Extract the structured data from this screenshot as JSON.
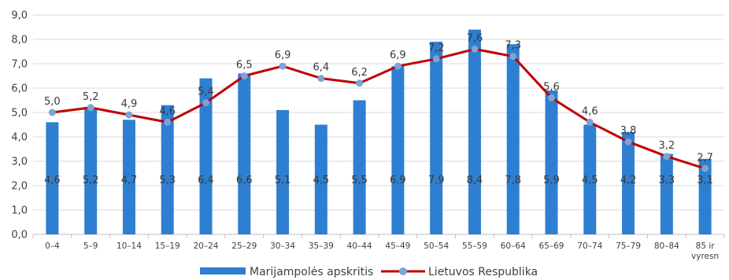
{
  "chart_data": {
    "type": "bar",
    "categories": [
      "0–4",
      "5–9",
      "10–14",
      "15–19",
      "20–24",
      "25–29",
      "30–34",
      "35–39",
      "40–44",
      "45–49",
      "50–54",
      "55–59",
      "60–64",
      "65–69",
      "70–74",
      "75–79",
      "80–84",
      "85 ir vyresn"
    ],
    "category_lines": [
      [
        "0–4"
      ],
      [
        "5–9"
      ],
      [
        "10–14"
      ],
      [
        "15–19"
      ],
      [
        "20–24"
      ],
      [
        "25–29"
      ],
      [
        "30–34"
      ],
      [
        "35–39"
      ],
      [
        "40–44"
      ],
      [
        "45–49"
      ],
      [
        "50–54"
      ],
      [
        "55–59"
      ],
      [
        "60–64"
      ],
      [
        "65–69"
      ],
      [
        "70–74"
      ],
      [
        "75–79"
      ],
      [
        "80–84"
      ],
      [
        "85 ir",
        "vyresn"
      ]
    ],
    "series": [
      {
        "name": "Marijampolės apskritis",
        "type": "bar",
        "color": "#2e7fd1",
        "values": [
          4.6,
          5.2,
          4.7,
          5.3,
          6.4,
          6.6,
          5.1,
          4.5,
          5.5,
          6.9,
          7.9,
          8.4,
          7.8,
          5.9,
          4.5,
          4.2,
          3.3,
          3.1
        ],
        "labels": [
          "4,6",
          "5,2",
          "4,7",
          "5,3",
          "6,4",
          "6,6",
          "5,1",
          "4,5",
          "5,5",
          "6,9",
          "7,9",
          "8,4",
          "7,8",
          "5,9",
          "4,5",
          "4,2",
          "3,3",
          "3,1"
        ]
      },
      {
        "name": "Lietuvos Respublika",
        "type": "line",
        "color": "#c00000",
        "marker_color": "#7aa5d6",
        "values": [
          5.0,
          5.2,
          4.9,
          4.6,
          5.4,
          6.5,
          6.9,
          6.4,
          6.2,
          6.9,
          7.2,
          7.6,
          7.3,
          5.6,
          4.6,
          3.8,
          3.2,
          2.7
        ],
        "labels": [
          "5,0",
          "5,2",
          "4,9",
          "4,6",
          "5,4",
          "6,5",
          "6,9",
          "6,4",
          "6,2",
          "6,9",
          "7,2",
          "7,6",
          "7,3",
          "5,6",
          "4,6",
          "3,8",
          "3,2",
          "2,7"
        ]
      }
    ],
    "y_ticks": [
      "0,0",
      "1,0",
      "2,0",
      "3,0",
      "4,0",
      "5,0",
      "6,0",
      "7,0",
      "8,0",
      "9,0"
    ],
    "ylim": [
      0,
      9
    ],
    "grid": true,
    "legend": "bottom"
  }
}
